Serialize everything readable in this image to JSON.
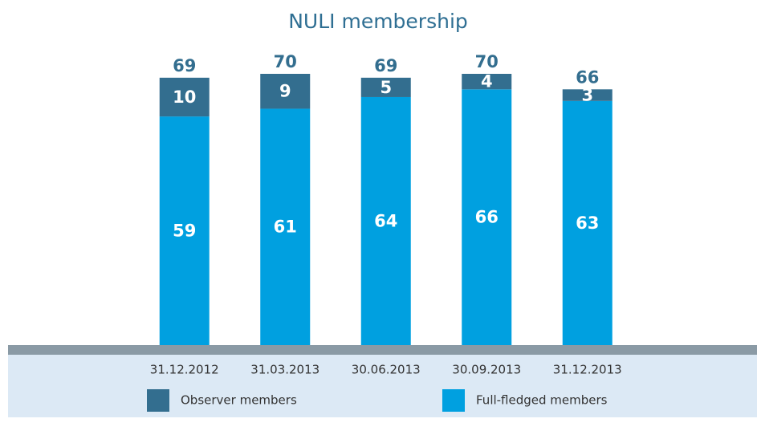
{
  "chart_data": {
    "type": "stacked_bar",
    "title": "NULI membership",
    "categories": [
      "31.12.2012",
      "31.03.2013",
      "30.06.2013",
      "30.09.2013",
      "31.12.2013"
    ],
    "series": [
      {
        "name": "Observer members",
        "color": "#336e8f",
        "values": [
          10,
          9,
          5,
          4,
          3
        ]
      },
      {
        "name": "Full-fledged members",
        "color": "#00a0e0",
        "values": [
          59,
          61,
          64,
          66,
          63
        ]
      }
    ],
    "totals": [
      69,
      70,
      69,
      70,
      66
    ]
  }
}
